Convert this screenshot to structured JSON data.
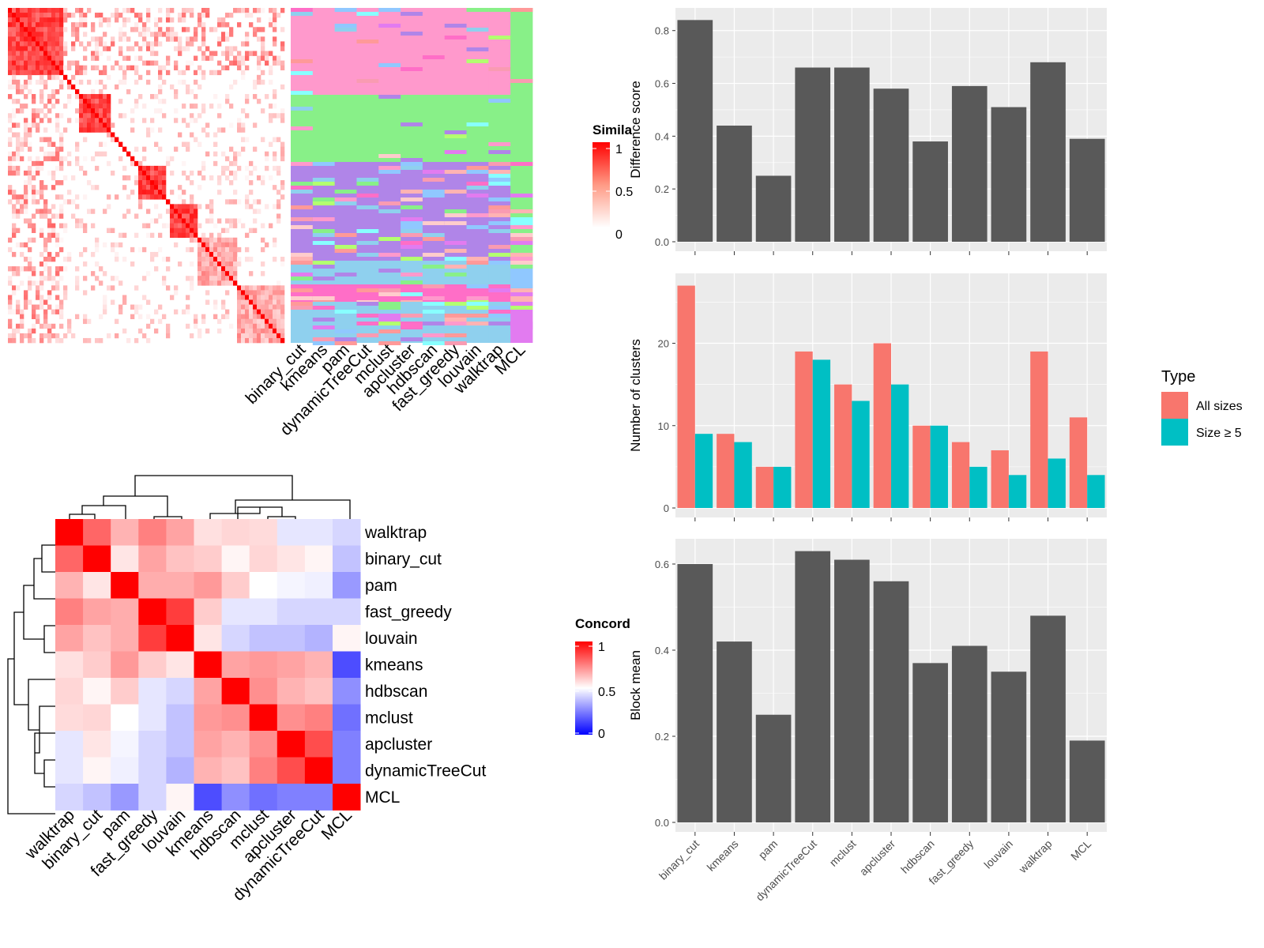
{
  "methods": [
    "binary_cut",
    "kmeans",
    "pam",
    "dynamicTreeCut",
    "mclust",
    "apcluster",
    "hdbscan",
    "fast_greedy",
    "louvain",
    "walktrap",
    "MCL"
  ],
  "similarity_legend": {
    "title": "Simila",
    "ticks": [
      "1",
      "0.5",
      "0"
    ]
  },
  "concordance_legend": {
    "title": "Concord",
    "ticks": [
      "1",
      "0.5",
      "0"
    ]
  },
  "colors": {
    "panel_bg": "#ebebeb",
    "grid": "#ffffff",
    "bar": "#595959",
    "all_sizes": "#f8766d",
    "size_ge5": "#00bfc4",
    "heat_high": "#ff0000",
    "heat_mid": "#ffffff",
    "heat_low": "#0000ff"
  },
  "concordance": {
    "order": [
      "walktrap",
      "binary_cut",
      "pam",
      "fast_greedy",
      "louvain",
      "kmeans",
      "hdbscan",
      "mclust",
      "apcluster",
      "dynamicTreeCut",
      "MCL"
    ],
    "matrix": [
      [
        1.0,
        0.8,
        0.65,
        0.75,
        0.68,
        0.56,
        0.58,
        0.57,
        0.45,
        0.45,
        0.42
      ],
      [
        0.8,
        1.0,
        0.55,
        0.68,
        0.62,
        0.6,
        0.52,
        0.58,
        0.55,
        0.52,
        0.38
      ],
      [
        0.65,
        0.55,
        1.0,
        0.66,
        0.66,
        0.7,
        0.6,
        0.5,
        0.48,
        0.47,
        0.3
      ],
      [
        0.75,
        0.68,
        0.66,
        1.0,
        0.88,
        0.6,
        0.45,
        0.45,
        0.42,
        0.42,
        0.42
      ],
      [
        0.68,
        0.62,
        0.66,
        0.88,
        1.0,
        0.55,
        0.42,
        0.38,
        0.38,
        0.35,
        0.52
      ],
      [
        0.56,
        0.6,
        0.7,
        0.6,
        0.55,
        1.0,
        0.68,
        0.7,
        0.68,
        0.65,
        0.15
      ],
      [
        0.58,
        0.52,
        0.6,
        0.45,
        0.42,
        0.68,
        1.0,
        0.72,
        0.65,
        0.62,
        0.28
      ],
      [
        0.57,
        0.58,
        0.5,
        0.45,
        0.38,
        0.7,
        0.72,
        1.0,
        0.72,
        0.75,
        0.22
      ],
      [
        0.45,
        0.55,
        0.48,
        0.42,
        0.38,
        0.68,
        0.65,
        0.72,
        1.0,
        0.85,
        0.25
      ],
      [
        0.45,
        0.52,
        0.47,
        0.42,
        0.35,
        0.65,
        0.62,
        0.75,
        0.85,
        1.0,
        0.25
      ],
      [
        0.42,
        0.38,
        0.3,
        0.42,
        0.52,
        0.15,
        0.28,
        0.22,
        0.25,
        0.25,
        1.0
      ]
    ]
  },
  "chart_data": [
    {
      "type": "bar",
      "categories": [
        "binary_cut",
        "kmeans",
        "pam",
        "dynamicTreeCut",
        "mclust",
        "apcluster",
        "hdbscan",
        "fast_greedy",
        "louvain",
        "walktrap",
        "MCL"
      ],
      "values": [
        0.84,
        0.44,
        0.25,
        0.66,
        0.66,
        0.58,
        0.38,
        0.59,
        0.51,
        0.68,
        0.39
      ],
      "title": "",
      "xlabel": "",
      "ylabel": "Difference score",
      "ylim": [
        0,
        0.88
      ],
      "yticks": [
        "0.0",
        "0.2",
        "0.4",
        "0.6",
        "0.8"
      ],
      "grid": true
    },
    {
      "type": "bar",
      "categories": [
        "binary_cut",
        "kmeans",
        "pam",
        "dynamicTreeCut",
        "mclust",
        "apcluster",
        "hdbscan",
        "fast_greedy",
        "louvain",
        "walktrap",
        "MCL"
      ],
      "series": [
        {
          "name": "All sizes",
          "values": [
            27,
            9,
            5,
            19,
            15,
            20,
            10,
            8,
            7,
            19,
            11
          ]
        },
        {
          "name": "Size ≥ 5",
          "values": [
            9,
            8,
            5,
            18,
            13,
            15,
            10,
            5,
            4,
            6,
            4
          ]
        }
      ],
      "title": "",
      "xlabel": "",
      "ylabel": "Number of clusters",
      "ylim": [
        0,
        28.3
      ],
      "yticks": [
        "0",
        "10",
        "20"
      ],
      "grid": true,
      "legend": {
        "title": "Type",
        "position": "right"
      }
    },
    {
      "type": "bar",
      "categories": [
        "binary_cut",
        "kmeans",
        "pam",
        "dynamicTreeCut",
        "mclust",
        "apcluster",
        "hdbscan",
        "fast_greedy",
        "louvain",
        "walktrap",
        "MCL"
      ],
      "values": [
        0.6,
        0.42,
        0.25,
        0.63,
        0.61,
        0.56,
        0.37,
        0.41,
        0.35,
        0.48,
        0.19
      ],
      "title": "",
      "xlabel": "",
      "ylabel": "Block mean",
      "ylim": [
        0,
        0.655
      ],
      "yticks": [
        "0.0",
        "0.2",
        "0.4",
        "0.6"
      ],
      "grid": true
    }
  ]
}
